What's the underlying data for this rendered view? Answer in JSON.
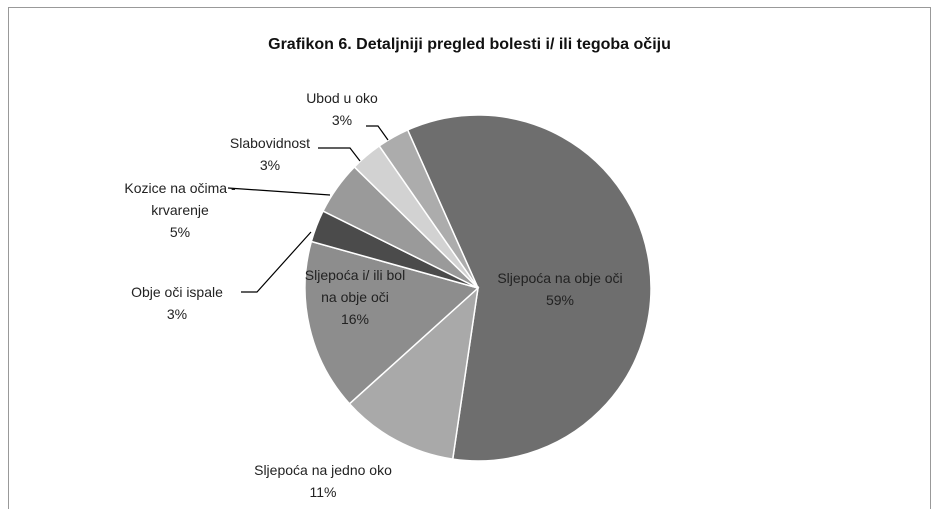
{
  "chart_data": {
    "type": "pie",
    "title": "Grafikon 6. Detaljniji pregled bolesti i/ ili tegoba očiju",
    "categories": [
      "Sljepoća na obje oči",
      "Sljepoća na jedno oko",
      "Sljepoća i/ ili bol na obje oči",
      "Obje oči ispale",
      "Kozice na očima - krvarenje",
      "Slabovidnost",
      "Ubod u oko"
    ],
    "values": [
      59,
      11,
      16,
      3,
      5,
      3,
      3
    ],
    "value_labels": [
      "59%",
      "11%",
      "16%",
      "3%",
      "5%",
      "3%",
      "3%"
    ],
    "colors": [
      "#6e6e6e",
      "#a9a9a9",
      "#8d8d8d",
      "#4b4b4b",
      "#9a9a9a",
      "#d2d2d2",
      "#acacac"
    ]
  }
}
